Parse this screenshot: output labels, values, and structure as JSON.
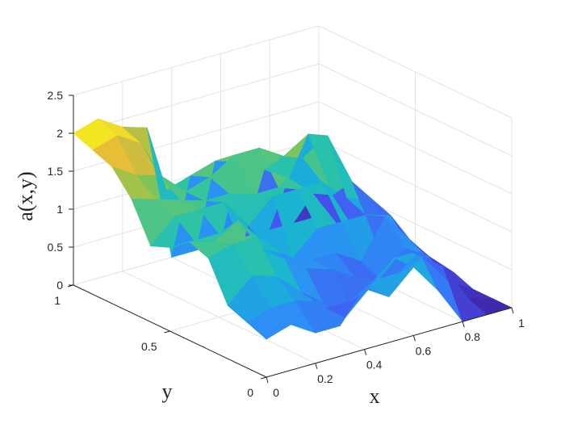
{
  "chart_data": {
    "type": "surface3d",
    "title": "",
    "xlabel": "x",
    "ylabel": "y",
    "zlabel": "a(x,y)",
    "xlim": [
      0,
      1
    ],
    "ylim": [
      0,
      1
    ],
    "zlim": [
      0,
      2.5
    ],
    "x_ticks": [
      "0",
      "0.2",
      "0.4",
      "0.6",
      "0.8",
      "1"
    ],
    "y_ticks": [
      "0",
      "0.5",
      "1"
    ],
    "z_ticks": [
      "0",
      "0.5",
      "1",
      "1.5",
      "2",
      "2.5"
    ],
    "colormap": [
      "#3e26a8",
      "#4653f1",
      "#2d8ef5",
      "#18b3d5",
      "#2ec4a3",
      "#8cc54d",
      "#e4ba3a",
      "#f9fb15"
    ],
    "grid": true,
    "x": [
      0.0,
      0.1,
      0.2,
      0.3,
      0.4,
      0.5,
      0.6,
      0.7,
      0.8,
      0.9,
      1.0
    ],
    "y": [
      0.0,
      0.1,
      0.2,
      0.3,
      0.4,
      0.5,
      0.6,
      0.7,
      0.8,
      0.9,
      1.0
    ],
    "z": [
      [
        0.5,
        0.6,
        0.4,
        0.4,
        0.8,
        0.6,
        0.9,
        0.5,
        0.0,
        0.0,
        0.0
      ],
      [
        0.6,
        0.7,
        0.7,
        0.6,
        0.3,
        0.6,
        0.9,
        0.9,
        0.6,
        0.1,
        0.0
      ],
      [
        0.7,
        1.0,
        0.9,
        0.6,
        0.3,
        0.3,
        0.5,
        0.5,
        0.6,
        0.2,
        0.0
      ],
      [
        1.2,
        1.3,
        1.3,
        1.0,
        0.7,
        0.6,
        0.4,
        0.3,
        0.6,
        0.4,
        0.1
      ],
      [
        1.3,
        1.2,
        1.4,
        0.9,
        0.7,
        0.6,
        0.6,
        0.4,
        0.9,
        0.5,
        0.1
      ],
      [
        1.1,
        1.1,
        1.1,
        0.8,
        0.7,
        0.5,
        0.8,
        0.8,
        0.8,
        0.7,
        0.1
      ],
      [
        1.0,
        1.3,
        1.3,
        1.3,
        0.9,
        1.2,
        1.2,
        1.2,
        0.9,
        0.8,
        0.1
      ],
      [
        1.5,
        1.4,
        1.3,
        1.2,
        1.2,
        1.1,
        1.1,
        1.4,
        1.6,
        0.9,
        0.0
      ],
      [
        1.8,
        1.6,
        1.5,
        1.2,
        1.3,
        1.5,
        1.5,
        1.3,
        1.5,
        0.6,
        0.0
      ],
      [
        1.9,
        2.0,
        1.8,
        1.1,
        1.2,
        1.3,
        1.2,
        1.0,
        0.8,
        0.5,
        0.0
      ],
      [
        2.0,
        2.1,
        1.9,
        1.8,
        0.0,
        0.0,
        0.0,
        0.0,
        0.0,
        0.0,
        0.0
      ]
    ]
  }
}
